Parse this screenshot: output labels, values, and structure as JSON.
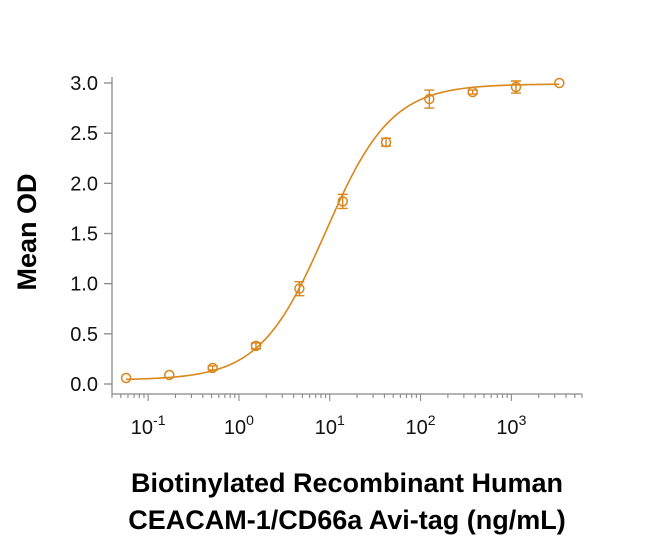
{
  "chart_data": {
    "type": "scatter",
    "title": "",
    "xlabel_lines": [
      "Biotinylated Recombinant Human",
      "CEACAM-1/CD66a Avi-tag (ng/mL)"
    ],
    "ylabel": "Mean OD",
    "x_scale": "log",
    "xlim": [
      0.04,
      6000
    ],
    "ylim": [
      0,
      3.0
    ],
    "x_ticks": [
      {
        "base": "10",
        "exp": "-1",
        "value": 0.1
      },
      {
        "base": "10",
        "exp": "0",
        "value": 1
      },
      {
        "base": "10",
        "exp": "1",
        "value": 10
      },
      {
        "base": "10",
        "exp": "2",
        "value": 100
      },
      {
        "base": "10",
        "exp": "3",
        "value": 1000
      }
    ],
    "y_ticks": [
      {
        "label": "0.0",
        "value": 0.0
      },
      {
        "label": "0.5",
        "value": 0.5
      },
      {
        "label": "1.0",
        "value": 1.0
      },
      {
        "label": "1.5",
        "value": 1.5
      },
      {
        "label": "2.0",
        "value": 2.0
      },
      {
        "label": "2.5",
        "value": 2.5
      },
      {
        "label": "3.0",
        "value": 3.0
      }
    ],
    "series": [
      {
        "color": "#D9861A",
        "marker": "open-circle",
        "points": [
          {
            "x": 0.0572,
            "y": 0.06,
            "err": 0.0
          },
          {
            "x": 0.171,
            "y": 0.09,
            "err": 0.0
          },
          {
            "x": 0.514,
            "y": 0.16,
            "err": 0.02
          },
          {
            "x": 1.54,
            "y": 0.38,
            "err": 0.03
          },
          {
            "x": 4.63,
            "y": 0.95,
            "err": 0.07
          },
          {
            "x": 13.9,
            "y": 1.82,
            "err": 0.07
          },
          {
            "x": 41.7,
            "y": 2.41,
            "err": 0.04
          },
          {
            "x": 125,
            "y": 2.84,
            "err": 0.09
          },
          {
            "x": 375,
            "y": 2.91,
            "err": 0.02
          },
          {
            "x": 1125,
            "y": 2.96,
            "err": 0.06
          },
          {
            "x": 3375,
            "y": 3.0,
            "err": 0.0
          }
        ],
        "fit": {
          "model": "4PL",
          "bottom": 0.04,
          "top": 2.99,
          "ec50": 9.0,
          "hill": 1.2
        }
      }
    ]
  }
}
